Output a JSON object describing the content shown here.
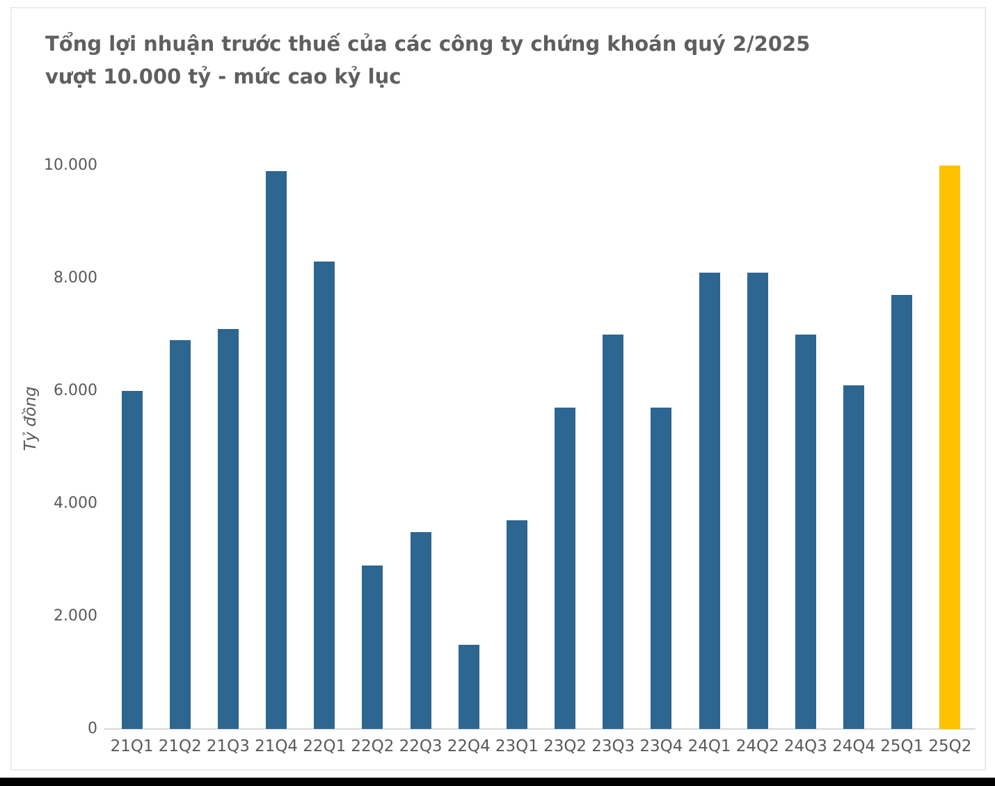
{
  "colors": {
    "bar": "#2D6690",
    "highlight": "#FFC000",
    "title_text": "#5F5F5F",
    "axis_text": "#595959",
    "axis_line": "#D9D9D9",
    "card_border": "#ECECEC",
    "footer_bar": "#000000"
  },
  "chart_data": {
    "type": "bar",
    "title": "Tổng lợi nhuận trước thuế của các công ty chứng khoán quý 2/2025 vượt 10.000 tỷ - mức cao kỷ lục",
    "title_lines": [
      "Tổng lợi nhuận trước thuế của các công ty chứng khoán quý 2/2025",
      "vượt 10.000 tỷ - mức cao kỷ lục"
    ],
    "categories": [
      "21Q1",
      "21Q2",
      "21Q3",
      "21Q4",
      "22Q1",
      "22Q2",
      "22Q3",
      "22Q4",
      "23Q1",
      "23Q2",
      "23Q3",
      "23Q4",
      "24Q1",
      "24Q2",
      "24Q3",
      "24Q4",
      "25Q1",
      "25Q2"
    ],
    "values": [
      6000,
      6900,
      7100,
      9900,
      8300,
      2900,
      3500,
      1500,
      3700,
      5700,
      7000,
      5700,
      8100,
      8100,
      7000,
      6100,
      7700,
      10000
    ],
    "highlight_index": 17,
    "xlabel": "",
    "ylabel": "Tỷ đồng",
    "ylim": [
      0,
      10000
    ],
    "ytick_values": [
      0,
      2000,
      4000,
      6000,
      8000,
      10000
    ],
    "ytick_labels": [
      "0",
      "2.000",
      "4.000",
      "6.000",
      "8.000",
      "10.000"
    ],
    "grid": false,
    "legend": false
  }
}
